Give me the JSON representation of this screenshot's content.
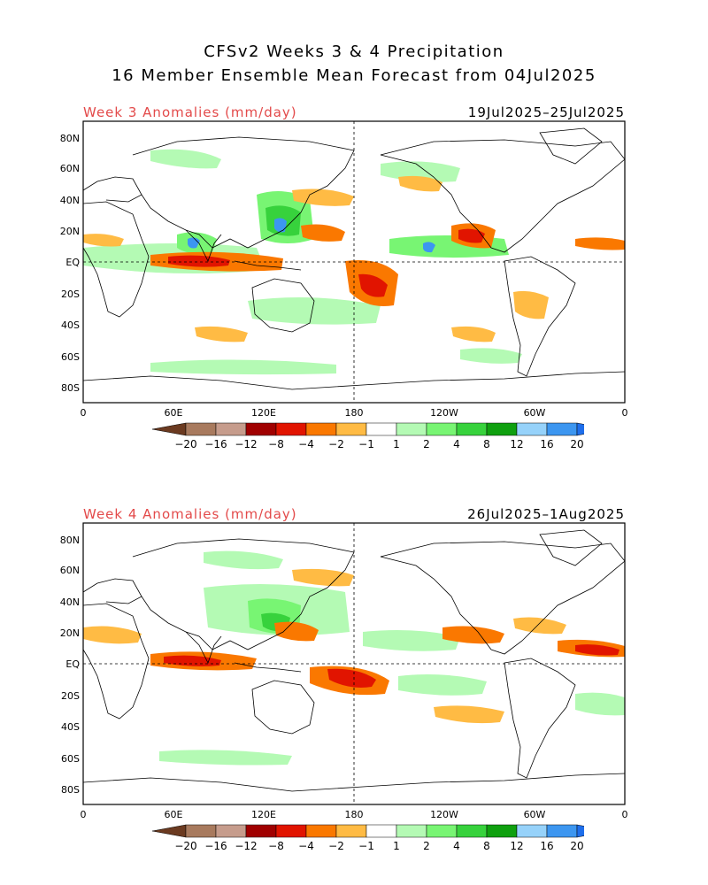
{
  "header": {
    "line1": "CFSv2 Weeks 3 & 4 Precipitation",
    "line2": "16 Member Ensemble Mean Forecast from 04Jul2025"
  },
  "panels": [
    {
      "title": "Week 3 Anomalies (mm/day)",
      "dates": "19Jul2025–25Jul2025"
    },
    {
      "title": "Week 4 Anomalies (mm/day)",
      "dates": "26Jul2025–1Aug2025"
    }
  ],
  "axes": {
    "lat_labels": [
      "80N",
      "60N",
      "40N",
      "20N",
      "EQ",
      "20S",
      "40S",
      "60S",
      "80S"
    ],
    "lon_labels": [
      "0",
      "60E",
      "120E",
      "180",
      "120W",
      "60W",
      "0"
    ]
  },
  "legend": {
    "labels": [
      "−20",
      "−16",
      "−12",
      "−8",
      "−4",
      "−2",
      "−1",
      "1",
      "2",
      "4",
      "8",
      "12",
      "16",
      "20"
    ],
    "colors": [
      "#6b3a20",
      "#a87a5e",
      "#c69c8c",
      "#a00000",
      "#e11400",
      "#fa7800",
      "#ffbb44",
      "#ffffff",
      "#b4fab4",
      "#78f573",
      "#37d23c",
      "#0fa00f",
      "#96d2fa",
      "#3c96f0",
      "#1e6eeb"
    ]
  },
  "colors": {
    "anomaly_title": "#e34a4a",
    "coast": "#000000"
  }
}
